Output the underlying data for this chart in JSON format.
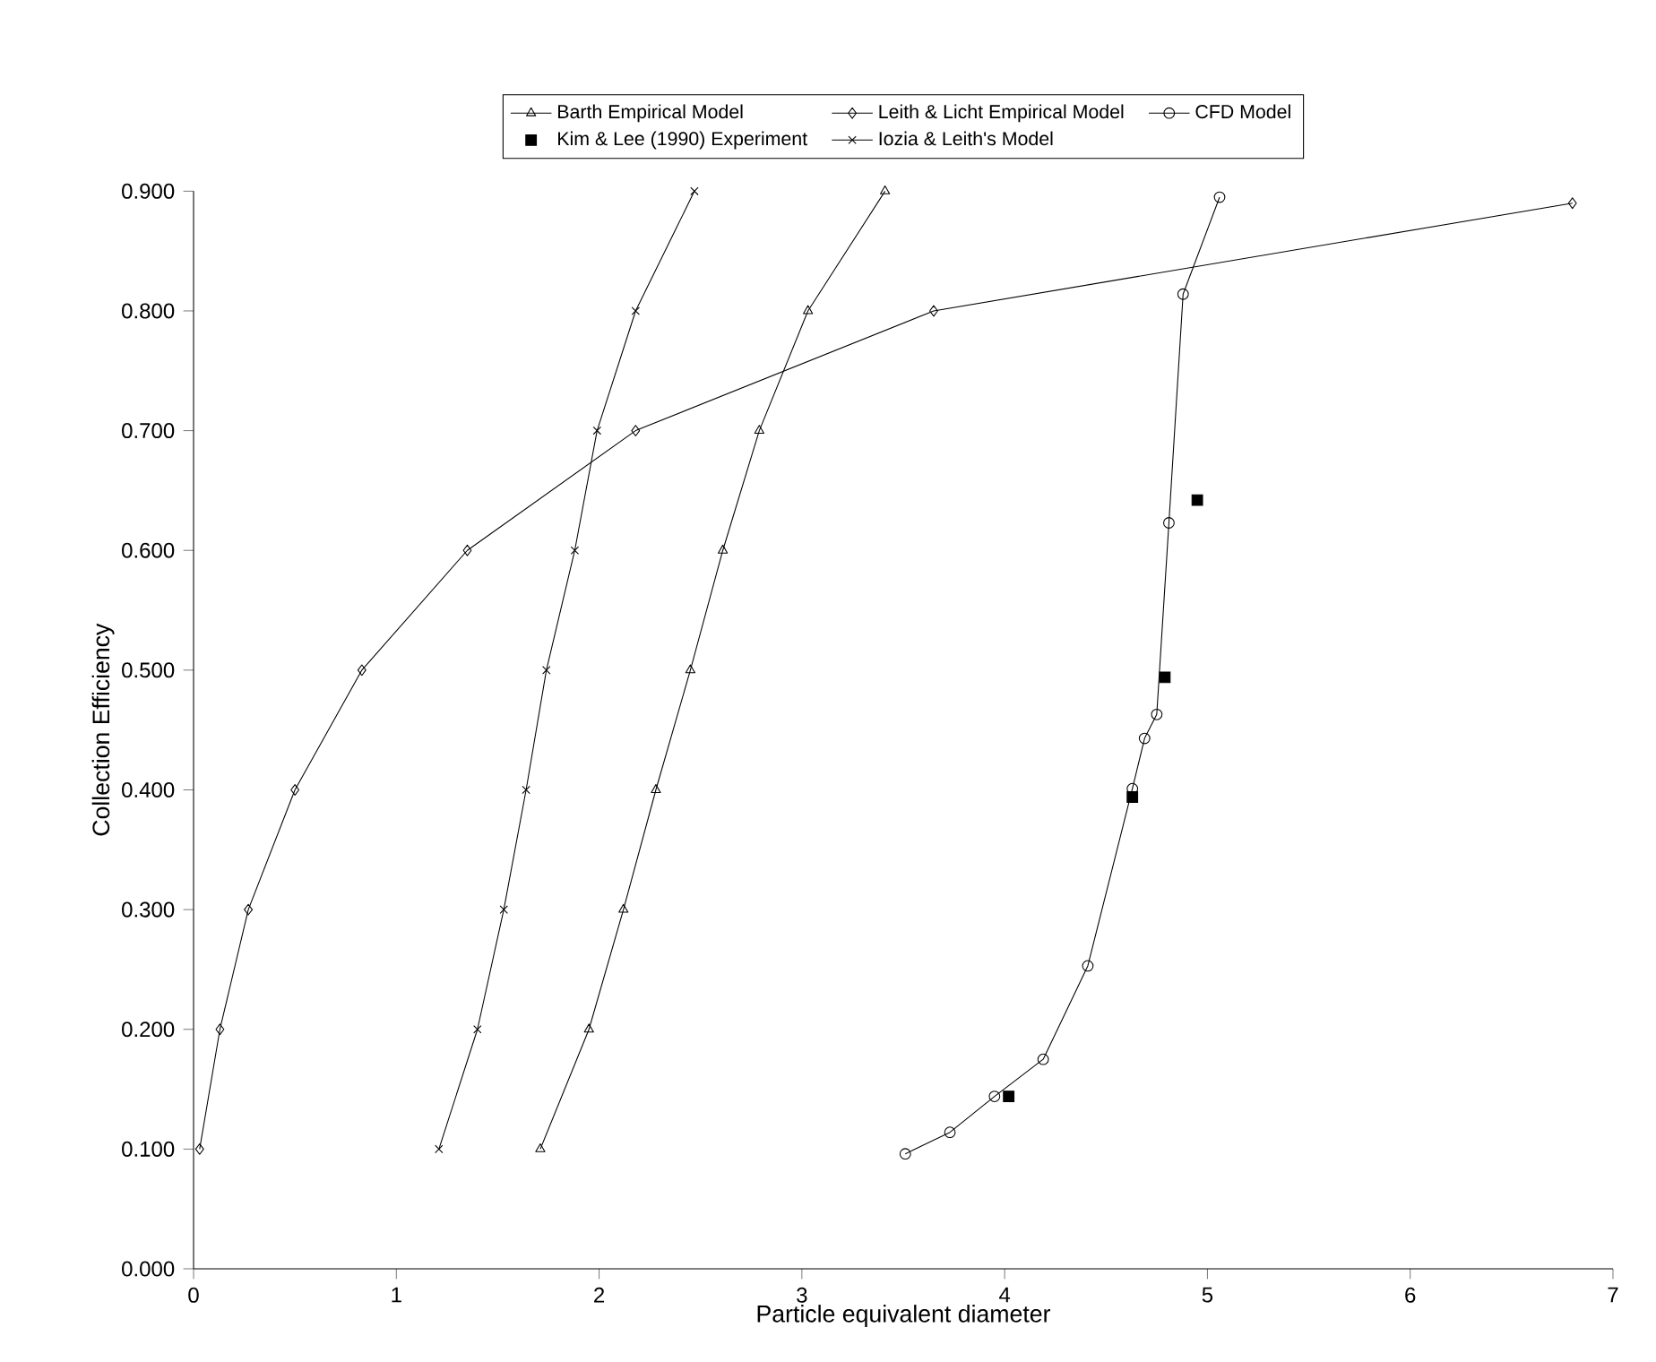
{
  "chart_data": {
    "type": "line",
    "xlabel": "Particle equivalent diameter",
    "ylabel": "Collection Efficiency",
    "xlim": [
      0,
      7
    ],
    "ylim": [
      0,
      0.9
    ],
    "xticks": [
      0,
      1,
      2,
      3,
      4,
      5,
      6,
      7
    ],
    "yticks": [
      {
        "value": 0,
        "label": "0.000"
      },
      {
        "value": 0.1,
        "label": "0.100"
      },
      {
        "value": 0.2,
        "label": "0.200"
      },
      {
        "value": 0.3,
        "label": "0.300"
      },
      {
        "value": 0.4,
        "label": "0.400"
      },
      {
        "value": 0.5,
        "label": "0.500"
      },
      {
        "value": 0.6,
        "label": "0.600"
      },
      {
        "value": 0.7,
        "label": "0.700"
      },
      {
        "value": 0.8,
        "label": "0.800"
      },
      {
        "value": 0.9,
        "label": "0.900"
      }
    ],
    "grid": false,
    "legend": "top",
    "line_style": "solid",
    "series": [
      {
        "name": "Barth Empirical Model",
        "color": "#000000",
        "marker": "triangle",
        "x": [
          1.71,
          1.95,
          2.12,
          2.28,
          2.45,
          2.61,
          2.79,
          3.03,
          3.41
        ],
        "values": [
          0.1,
          0.2,
          0.3,
          0.4,
          0.5,
          0.6,
          0.7,
          0.8,
          0.9
        ]
      },
      {
        "name": "Leith & Licht Empirical Model",
        "color": "#000000",
        "marker": "diamond",
        "x": [
          0.03,
          0.13,
          0.27,
          0.5,
          0.83,
          1.35,
          2.18,
          3.65,
          6.8
        ],
        "values": [
          0.1,
          0.2,
          0.3,
          0.4,
          0.5,
          0.6,
          0.7,
          0.8,
          0.89
        ]
      },
      {
        "name": "CFD Model",
        "color": "#000000",
        "marker": "circle",
        "x": [
          3.51,
          3.73,
          3.95,
          4.19,
          4.41,
          4.63,
          4.69,
          4.75,
          4.81,
          4.88,
          5.06
        ],
        "values": [
          0.096,
          0.114,
          0.144,
          0.175,
          0.253,
          0.401,
          0.443,
          0.463,
          0.623,
          0.814,
          0.895
        ]
      },
      {
        "name": "Kim & Lee (1990) Experiment",
        "color": "#000000",
        "type": "scatter",
        "marker": "square",
        "x": [
          4.02,
          4.63,
          4.79,
          4.95
        ],
        "values": [
          0.144,
          0.394,
          0.494,
          0.642
        ]
      },
      {
        "name": "Iozia & Leith's Model",
        "color": "#000000",
        "marker": "cross",
        "x": [
          1.21,
          1.4,
          1.53,
          1.64,
          1.74,
          1.88,
          1.99,
          2.18,
          2.47
        ],
        "values": [
          0.1,
          0.2,
          0.3,
          0.4,
          0.5,
          0.6,
          0.7,
          0.8,
          0.9
        ]
      }
    ]
  }
}
